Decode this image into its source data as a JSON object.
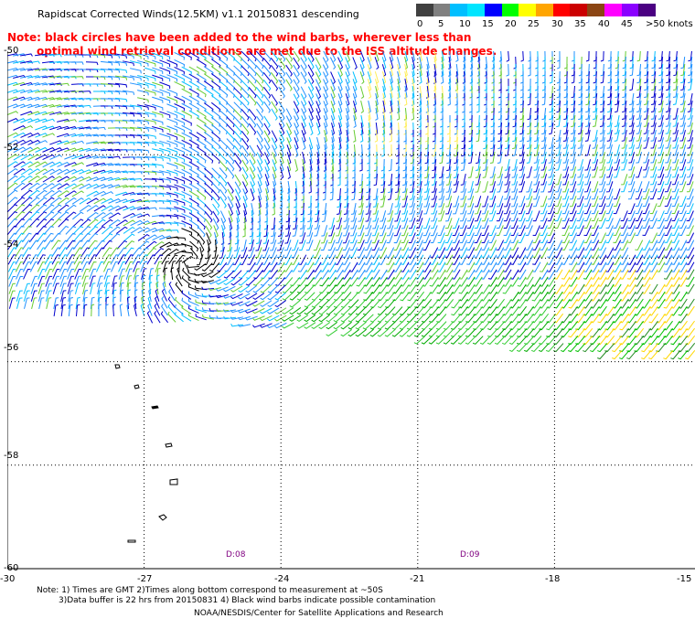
{
  "title": "Rapidscat Corrected Winds(12.5KM) v1.1 20150831 descending",
  "note": {
    "line1": "Note: black circles have been added to the wind barbs, wherever less than",
    "line2": "optimal wind retrieval conditions are met due to the ISS altitude changes."
  },
  "colorbar": {
    "unit_label": ">50 knots",
    "ticks": [
      "0",
      "5",
      "10",
      "15",
      "20",
      "25",
      "30",
      "35",
      "40",
      "45"
    ],
    "colors": [
      "#404040",
      "#808080",
      "#00bfff",
      "#00e5ff",
      "#0000ff",
      "#00ff00",
      "#ffff00",
      "#ffa500",
      "#ff0000",
      "#cc0000",
      "#8b4513",
      "#ff00ff",
      "#8b00ff",
      "#4b0082"
    ]
  },
  "map": {
    "lat_labels": [
      "-50",
      "-52",
      "-54",
      "-56",
      "-58",
      "-60"
    ],
    "lon_labels": [
      "-30",
      "-27",
      "-24",
      "-21",
      "-18",
      "-15"
    ],
    "lat_values": [
      -50,
      -52,
      -54,
      -56,
      -58,
      -60
    ],
    "lon_values": [
      -30,
      -27,
      -24,
      -21,
      -18,
      -15
    ],
    "time_labels": [
      "D:08",
      "D:09"
    ],
    "background": "#ffffff",
    "gridline_color": "#000000"
  },
  "footnotes": {
    "line1": "Note: 1) Times are GMT 2)Times along bottom correspond to measurement at ~50S",
    "line2": "3)Data buffer is 22 hrs from 20150831 4) Black wind barbs indicate possible contamination",
    "credit": "NOAA/NESDIS/Center for Satellite Applications and Research"
  }
}
